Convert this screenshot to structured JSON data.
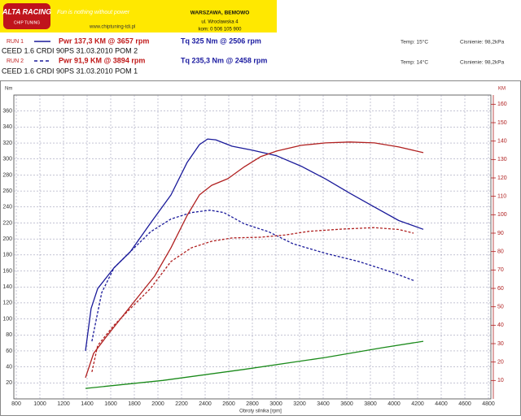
{
  "header": {
    "logo": "ALTA RACING",
    "logo_sub": "CHIP TUNING",
    "slogan": "Fun is nothing without power",
    "url": "www.chiptuning-tdi.pl",
    "city": "WARSZAWA, BEMOWO",
    "street": "ul. Wrocławska 4",
    "phone": "kom: 0 506 105 900"
  },
  "runs": [
    {
      "label": "RUN 1",
      "power": "Pwr 137,3 KM @ 3657 rpm",
      "torque": "Tq 325 Nm @ 2506 rpm",
      "temp": "Temp: 15°C",
      "pressure": "Cisnienie: 98,2kPa",
      "car": "CEED 1.6 CRDI 90PS 31.03.2010 POM 2"
    },
    {
      "label": "RUN 2",
      "power": "Pwr 91,9 KM @ 3894 rpm",
      "torque": "Tq 235,3 Nm @ 2458 rpm",
      "temp": "Temp: 14°C",
      "pressure": "Cisnienie: 98,2kPa",
      "car": "CEED 1.6 CRDI 90PS 31.03.2010 POM 1"
    }
  ],
  "chart_data": {
    "type": "line",
    "x_label": "Obroty silnika [rpm]",
    "y_label": "Nm",
    "y2_label": "KM",
    "xlim": [
      800,
      4800
    ],
    "xticks": [
      800,
      1000,
      1200,
      1400,
      1600,
      1800,
      2000,
      2200,
      2400,
      2600,
      2800,
      3000,
      3200,
      3400,
      3600,
      3800,
      4000,
      4200,
      4400,
      4600,
      4800
    ],
    "ylim": [
      0,
      380
    ],
    "yticks": [
      20,
      40,
      60,
      80,
      100,
      120,
      140,
      160,
      180,
      200,
      220,
      240,
      260,
      280,
      300,
      320,
      340,
      360
    ],
    "y2lim": [
      0,
      165
    ],
    "y2ticks": [
      10,
      20,
      30,
      40,
      50,
      60,
      70,
      80,
      90,
      100,
      110,
      120,
      130,
      140,
      150,
      160
    ],
    "grid": true,
    "series": [
      {
        "color": "#1a1a9a",
        "dash": false,
        "x": [
          1386,
          1434,
          1490,
          1628,
          1766,
          1938,
          2110,
          2248,
          2352,
          2421,
          2490,
          2628,
          2800,
          3007,
          3214,
          3421,
          3628,
          3834,
          4041,
          4248
        ],
        "values": [
          60,
          113,
          138,
          164,
          184,
          220,
          255,
          296,
          318,
          325,
          324,
          316,
          311,
          304,
          291,
          275,
          257,
          240,
          223,
          212
        ]
      },
      {
        "color": "#1a1a9a",
        "dash": true,
        "x": [
          1441,
          1476,
          1524,
          1628,
          1938,
          2110,
          2283,
          2441,
          2559,
          2731,
          2938,
          3145,
          3421,
          3697,
          3972,
          4166
        ],
        "values": [
          72,
          98,
          133,
          164,
          209,
          225,
          233,
          236,
          233,
          219,
          209,
          194,
          182,
          172,
          159,
          148
        ]
      },
      {
        "color": "#b02020",
        "dash": false,
        "axis": "y2",
        "x": [
          1386,
          1455,
          1559,
          1697,
          1834,
          1972,
          2110,
          2248,
          2352,
          2455,
          2593,
          2731,
          2869,
          3007,
          3214,
          3421,
          3628,
          3834,
          4041,
          4248
        ],
        "values": [
          11.5,
          24.7,
          33.5,
          44.6,
          55.6,
          66.6,
          82,
          99.7,
          110.8,
          116,
          119.6,
          126,
          131.5,
          134.6,
          137.7,
          139,
          139.5,
          139,
          136.8,
          133.7
        ]
      },
      {
        "color": "#b02020",
        "dash": true,
        "axis": "y2",
        "x": [
          1441,
          1490,
          1628,
          1766,
          1938,
          2110,
          2283,
          2455,
          2628,
          2869,
          3076,
          3283,
          3559,
          3834,
          4041,
          4166
        ],
        "values": [
          14.6,
          29,
          40,
          49,
          60,
          74.6,
          82,
          85.6,
          87.4,
          87.8,
          89,
          91,
          92.2,
          93,
          92,
          90
        ]
      },
      {
        "color": "#1a8a1a",
        "dash": false,
        "axis": "y2",
        "x": [
          1386,
          2041,
          2731,
          3421,
          3903,
          4248
        ],
        "values": [
          5.7,
          10,
          16,
          22.5,
          27.8,
          31.3
        ]
      }
    ]
  }
}
